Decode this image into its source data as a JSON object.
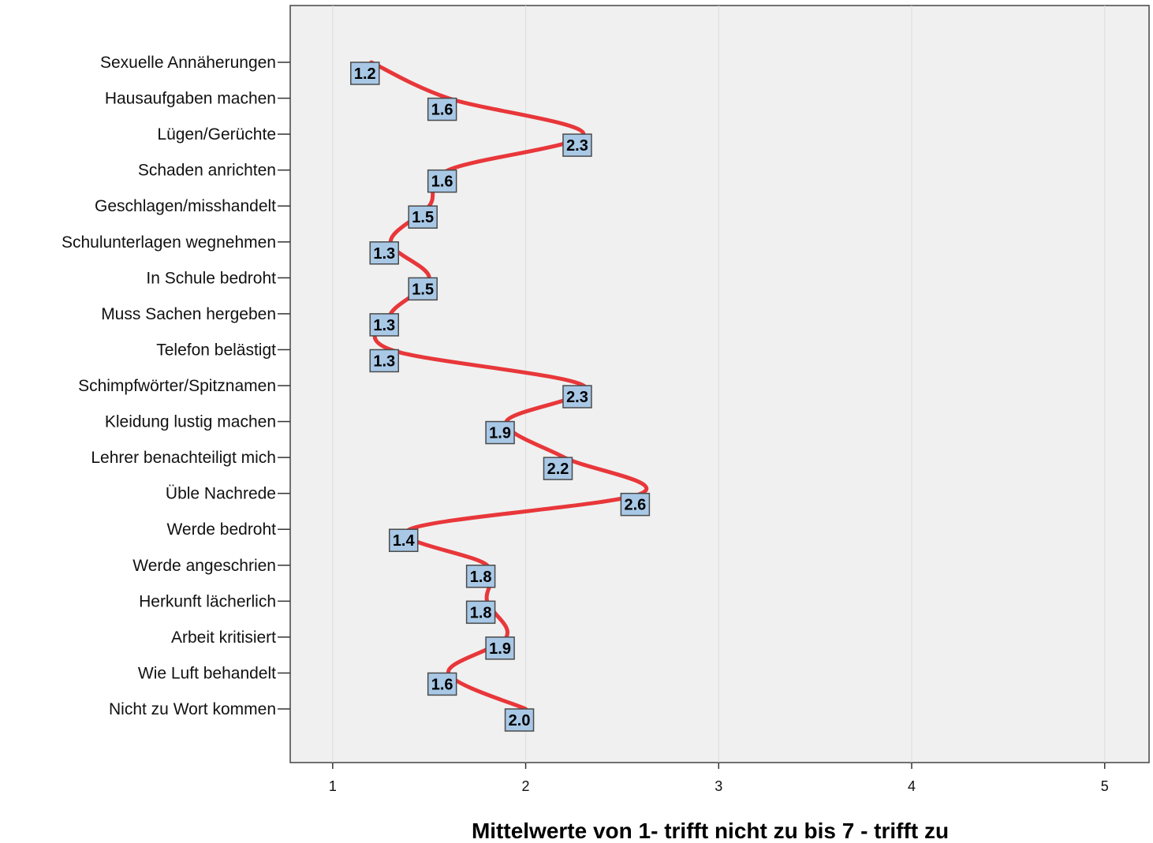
{
  "chart_data": {
    "type": "line",
    "orientation": "horizontal",
    "categories": [
      "Sexuelle Annäherungen",
      "Hausaufgaben machen",
      "Lügen/Gerüchte",
      "Schaden anrichten",
      "Geschlagen/misshandelt",
      "Schulunterlagen wegnehmen",
      "In Schule bedroht",
      "Muss Sachen hergeben",
      "Telefon belästigt",
      "Schimpfwörter/Spitznamen",
      "Kleidung lustig machen",
      "Lehrer benachteiligt mich",
      "Üble Nachrede",
      "Werde bedroht",
      "Werde angeschrien",
      "Herkunft lächerlich",
      "Arbeit kritisiert",
      "Wie Luft behandelt",
      "Nicht zu Wort kommen"
    ],
    "data_labels": [
      "1.2",
      "1.6",
      "2.3",
      "1.6",
      "1.5",
      "1.3",
      "1.5",
      "1.3",
      "1.3",
      "2.3",
      "1.9",
      "2.2",
      "2.6",
      "1.4",
      "1.8",
      "1.8",
      "1.9",
      "1.6",
      "2.0"
    ],
    "xticks": [
      1,
      2,
      3,
      4,
      5
    ],
    "xlim": [
      0.78,
      5.23
    ],
    "xlabel": "Mittelwerte von 1- trifft nicht zu bis 7 - trifft zu",
    "title": "",
    "ylabel": "",
    "grid": true,
    "colors": {
      "line": "#e8373a",
      "plot_background": "#f0f0f0",
      "grid": "#dcdcdc",
      "label_box_fill": "#a8c8e6",
      "label_box_stroke": "#4a4a4a"
    }
  }
}
